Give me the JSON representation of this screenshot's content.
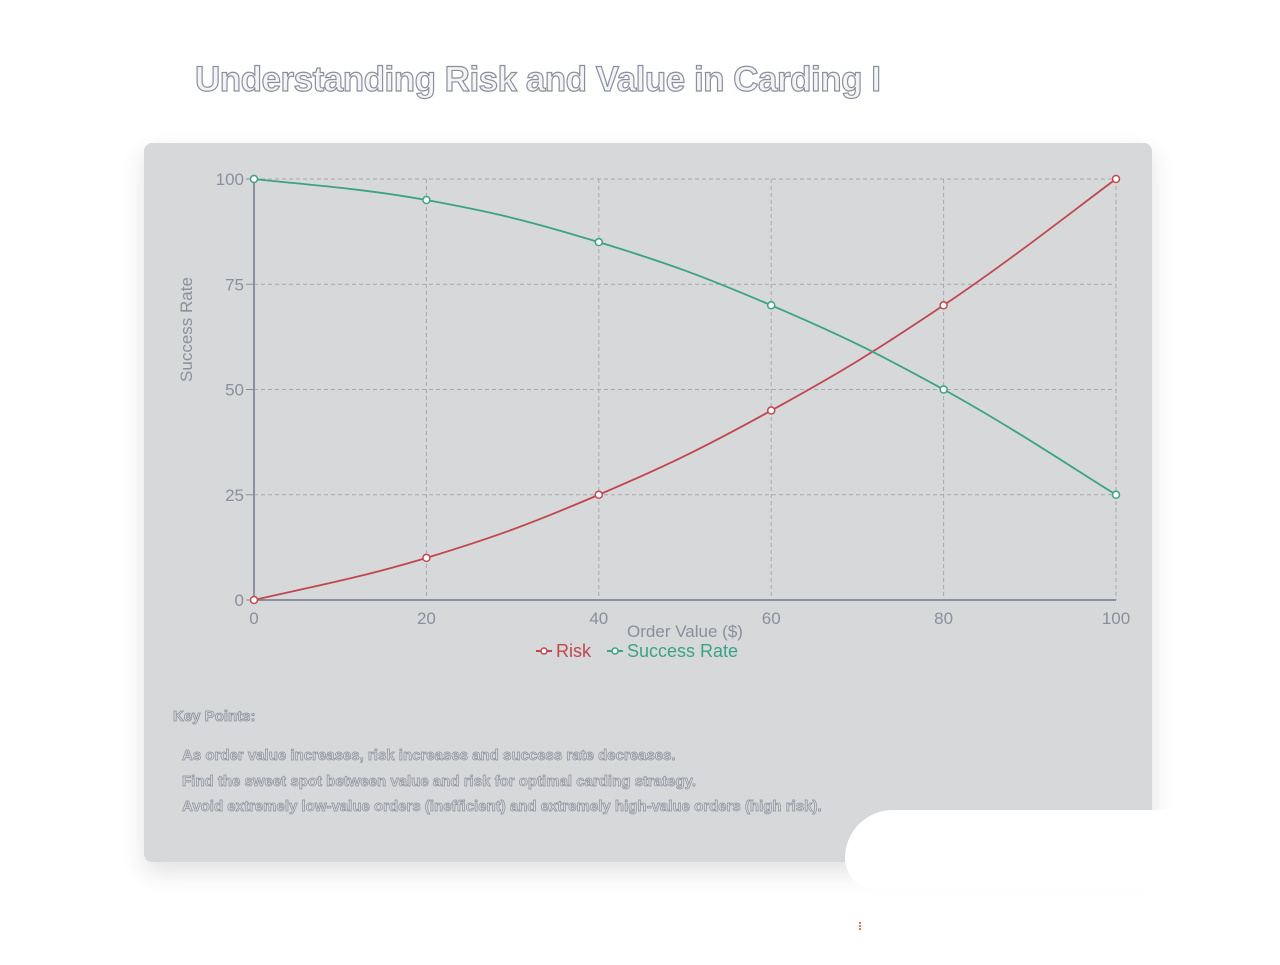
{
  "title": "Understanding Risk and Value in Carding I",
  "chart_data": {
    "type": "line",
    "x": [
      0,
      20,
      40,
      60,
      80,
      100
    ],
    "xlabel": "Order Value ($)",
    "ylabel": "Success Rate",
    "xlim": [
      0,
      100
    ],
    "ylim": [
      0,
      100
    ],
    "xticks": [
      "0",
      "20",
      "40",
      "60",
      "80",
      "100"
    ],
    "yticks": [
      "0",
      "25",
      "50",
      "75",
      "100"
    ],
    "grid": true,
    "legend": "bottom",
    "series": [
      {
        "name": "Risk",
        "color": "#c0474f",
        "values": [
          0,
          10,
          25,
          45,
          70,
          100
        ]
      },
      {
        "name": "Success Rate",
        "color": "#3aa383",
        "values": [
          100,
          95,
          85,
          70,
          50,
          25
        ]
      }
    ]
  },
  "key_points": {
    "heading": "Key Points:",
    "items": [
      "As order value increases, risk increases and success rate decreases.",
      "Find the sweet spot between value and risk for optimal carding strategy.",
      "Avoid extremely low-value orders (inefficient) and extremely high-value orders (high risk)."
    ]
  }
}
